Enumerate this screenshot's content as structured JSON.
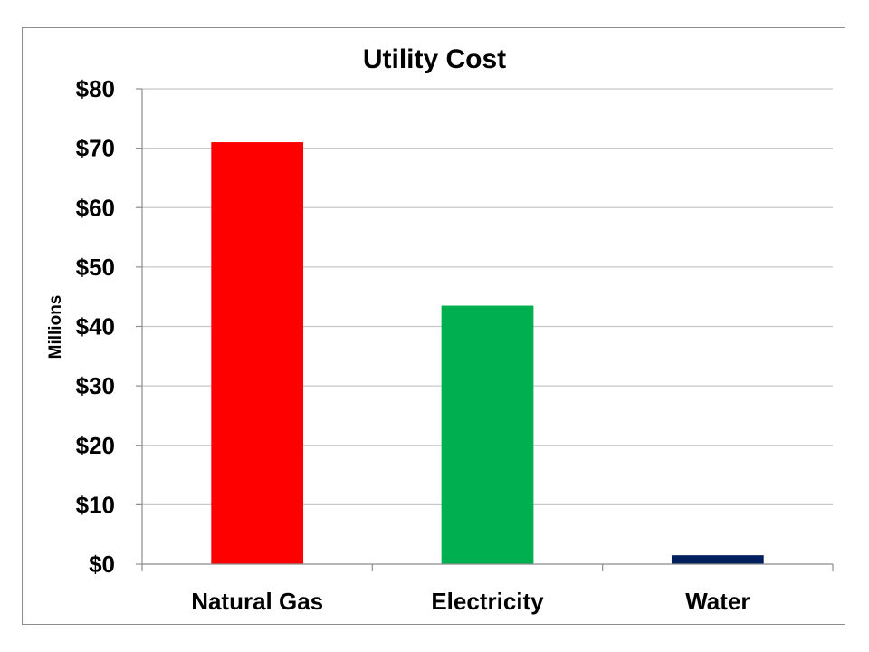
{
  "chart_data": {
    "type": "bar",
    "title": "Utility Cost",
    "ylabel": "Millions",
    "xlabel": "",
    "categories": [
      "Natural Gas",
      "Electricity",
      "Water"
    ],
    "values": [
      71,
      43.5,
      1.5
    ],
    "colors": [
      "#ff0000",
      "#00b050",
      "#002060"
    ],
    "ylim": [
      0,
      80
    ],
    "yticks": [
      0,
      10,
      20,
      30,
      40,
      50,
      60,
      70,
      80
    ],
    "ytick_labels": [
      "$0",
      "$10",
      "$20",
      "$30",
      "$40",
      "$50",
      "$60",
      "$70",
      "$80"
    ],
    "grid": true,
    "legend": "none"
  }
}
